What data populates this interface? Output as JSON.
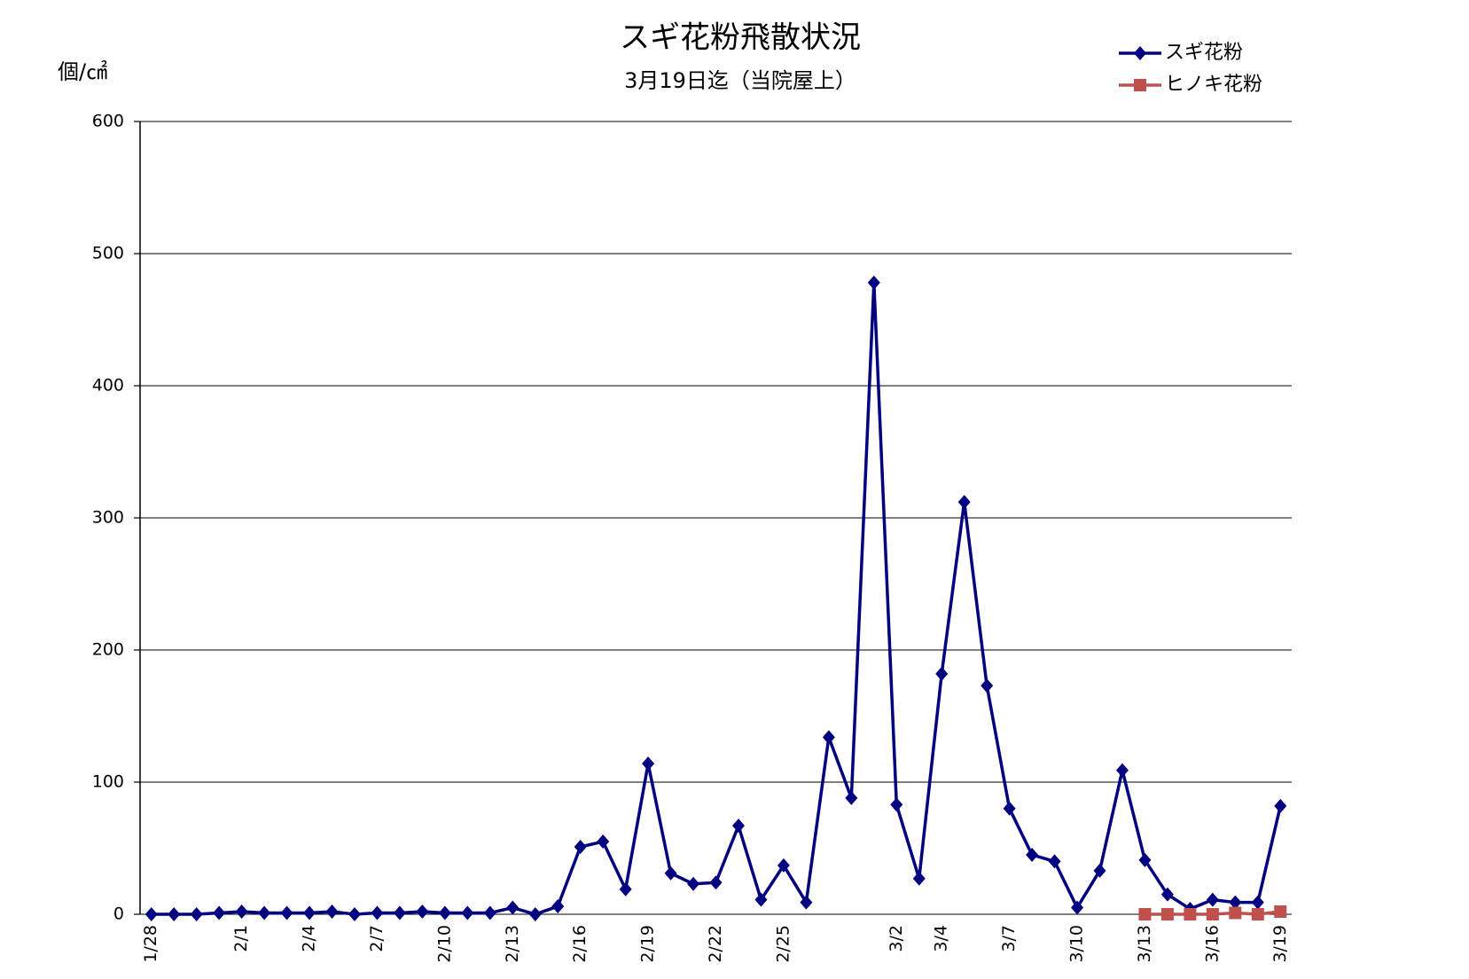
{
  "chart_data": {
    "type": "line",
    "title": "スギ花粉飛散状況",
    "subtitle": "3月19日迄（当院屋上）",
    "y_label": "個/㎠",
    "categories": [
      "1/28",
      null,
      null,
      null,
      "2/1",
      null,
      null,
      "2/4",
      null,
      null,
      "2/7",
      null,
      null,
      "2/10",
      null,
      null,
      "2/13",
      null,
      null,
      "2/16",
      null,
      null,
      "2/19",
      null,
      null,
      "2/22",
      null,
      null,
      "2/25",
      null,
      null,
      null,
      null,
      "3/2",
      null,
      "3/4",
      null,
      null,
      "3/7",
      null,
      null,
      "3/10",
      null,
      null,
      "3/13",
      null,
      null,
      "3/16",
      null,
      null,
      "3/19"
    ],
    "series": [
      {
        "name": "スギ花粉",
        "color": "#000080",
        "marker": "diamond",
        "values": [
          0,
          0,
          0,
          1,
          2,
          1,
          1,
          1,
          2,
          0,
          1,
          1,
          2,
          1,
          1,
          1,
          5,
          0,
          6,
          51,
          55,
          19,
          114,
          31,
          23,
          24,
          67,
          11,
          37,
          9,
          134,
          88,
          478,
          83,
          27,
          182,
          312,
          173,
          80,
          45,
          40,
          5,
          33,
          109,
          41,
          15,
          4,
          11,
          9,
          9,
          82
        ]
      },
      {
        "name": "ヒノキ花粉",
        "color": "#c0504d",
        "marker": "square",
        "values": [
          null,
          null,
          null,
          null,
          null,
          null,
          null,
          null,
          null,
          null,
          null,
          null,
          null,
          null,
          null,
          null,
          null,
          null,
          null,
          null,
          null,
          null,
          null,
          null,
          null,
          null,
          null,
          null,
          null,
          null,
          null,
          null,
          null,
          null,
          null,
          null,
          null,
          null,
          null,
          null,
          null,
          null,
          null,
          null,
          0,
          0,
          0,
          0,
          1,
          0,
          2
        ]
      }
    ],
    "ylim": [
      0,
      600
    ],
    "yticks": [
      0,
      100,
      200,
      300,
      400,
      500,
      600
    ],
    "grid": true,
    "legend": "upper right"
  }
}
